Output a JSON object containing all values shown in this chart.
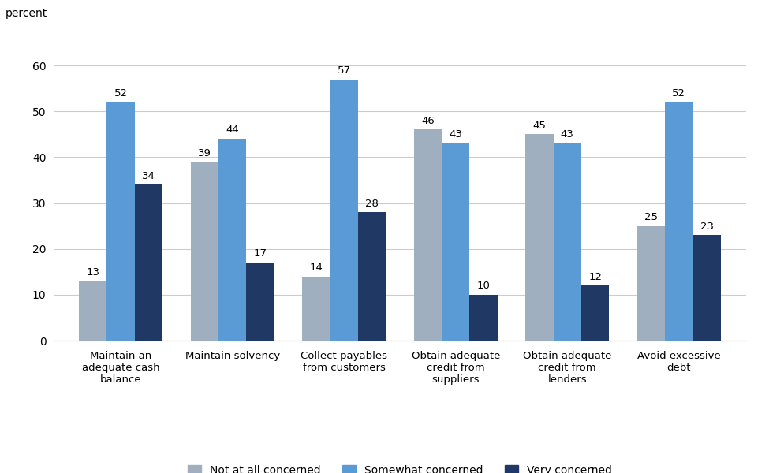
{
  "categories": [
    "Maintain an\nadequate cash\nbalance",
    "Maintain solvency",
    "Collect payables\nfrom customers",
    "Obtain adequate\ncredit from\nsuppliers",
    "Obtain adequate\ncredit from\nlenders",
    "Avoid excessive\ndebt"
  ],
  "series": {
    "Not at all concerned": [
      13,
      39,
      14,
      46,
      45,
      25
    ],
    "Somewhat concerned": [
      52,
      44,
      57,
      43,
      43,
      52
    ],
    "Very concerned": [
      34,
      17,
      28,
      10,
      12,
      23
    ]
  },
  "colors": {
    "Not at all concerned": "#a0afc0",
    "Somewhat concerned": "#5b9bd5",
    "Very concerned": "#1f3864"
  },
  "ylabel_text": "percent",
  "ylim": [
    0,
    65
  ],
  "yticks": [
    0,
    10,
    20,
    30,
    40,
    50,
    60
  ],
  "bar_width": 0.25,
  "legend_labels": [
    "Not at all concerned",
    "Somewhat concerned",
    "Very concerned"
  ],
  "figure_width": 9.75,
  "figure_height": 6.0,
  "dpi": 100
}
